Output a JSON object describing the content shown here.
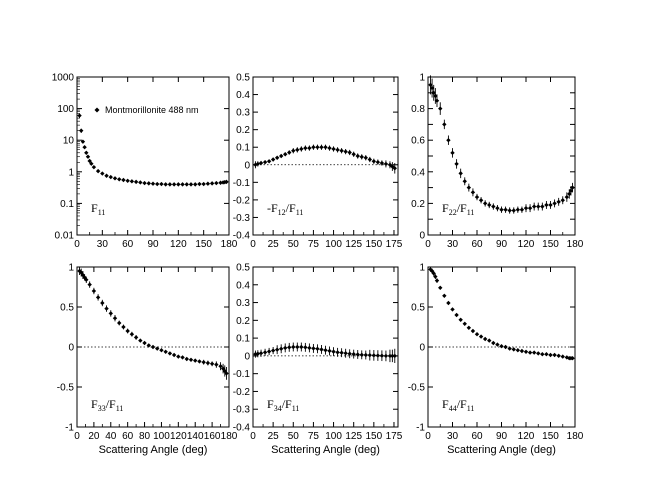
{
  "chart_data": [
    {
      "id": "f11",
      "type": "scatter",
      "panel_label": {
        "main": "F",
        "sub": "11"
      },
      "yscale": "log",
      "ylim": [
        0.01,
        1000
      ],
      "yticks": [
        0.01,
        0.1,
        1,
        10,
        100,
        1000
      ],
      "ytick_labels": [
        "0.01",
        "0.1",
        "1",
        "10",
        "100",
        "1000"
      ],
      "xlim": [
        0,
        180
      ],
      "xticks": [
        0,
        30,
        60,
        90,
        120,
        150,
        180
      ],
      "xtick_labels": [
        "0",
        "30",
        "60",
        "90",
        "120",
        "150",
        "180"
      ],
      "xlabel": "",
      "legend": {
        "label": "Montmorillonite 488 nm",
        "position": "top-left"
      },
      "series": [
        {
          "x": [
            3,
            5,
            7,
            9,
            11,
            13,
            15,
            17,
            20,
            25,
            30,
            35,
            40,
            45,
            50,
            55,
            60,
            65,
            70,
            75,
            80,
            85,
            90,
            95,
            100,
            105,
            110,
            115,
            120,
            125,
            130,
            135,
            140,
            145,
            150,
            155,
            160,
            165,
            170,
            173,
            175,
            177
          ],
          "y": [
            60,
            20,
            9,
            6,
            4,
            3,
            2.2,
            1.8,
            1.4,
            1.05,
            0.88,
            0.75,
            0.68,
            0.62,
            0.58,
            0.55,
            0.52,
            0.5,
            0.48,
            0.46,
            0.44,
            0.43,
            0.42,
            0.41,
            0.41,
            0.4,
            0.4,
            0.4,
            0.4,
            0.4,
            0.4,
            0.4,
            0.4,
            0.41,
            0.41,
            0.42,
            0.43,
            0.44,
            0.45,
            0.46,
            0.47,
            0.48
          ],
          "err": [
            10,
            3,
            1,
            0.5,
            0.3,
            0.2,
            0.15,
            0.1,
            0.08,
            0.05,
            0.04,
            0.03,
            0.03,
            0.02,
            0.02,
            0.02,
            0.02,
            0.02,
            0.02,
            0.02,
            0.02,
            0.02,
            0.02,
            0.02,
            0.02,
            0.02,
            0.02,
            0.02,
            0.02,
            0.02,
            0.02,
            0.02,
            0.02,
            0.02,
            0.02,
            0.02,
            0.02,
            0.02,
            0.02,
            0.02,
            0.02,
            0.02
          ]
        }
      ]
    },
    {
      "id": "f12",
      "type": "scatter",
      "panel_label": {
        "main": "-F",
        "sub": "12",
        "tail": "/F",
        "sub2": "11"
      },
      "yscale": "linear",
      "ylim": [
        -0.4,
        0.5
      ],
      "yticks": [
        -0.4,
        -0.3,
        -0.2,
        -0.1,
        0,
        0.1,
        0.2,
        0.3,
        0.4,
        0.5
      ],
      "ytick_labels": [
        "-0.4",
        "-0.3",
        "-0.2",
        "-0.1",
        "0",
        "0.1",
        "0.2",
        "0.3",
        "0.4",
        "0.5"
      ],
      "xlim": [
        0,
        180
      ],
      "xticks": [
        0,
        25,
        50,
        75,
        100,
        125,
        150,
        175
      ],
      "xtick_labels": [
        "0",
        "25",
        "50",
        "75",
        "100",
        "125",
        "150",
        "175"
      ],
      "xlabel": "",
      "zero_line": true,
      "series": [
        {
          "x": [
            3,
            6,
            10,
            15,
            20,
            25,
            30,
            35,
            40,
            45,
            50,
            55,
            60,
            65,
            70,
            75,
            80,
            85,
            90,
            95,
            100,
            105,
            110,
            115,
            120,
            125,
            130,
            135,
            140,
            145,
            150,
            155,
            160,
            165,
            170,
            173,
            176
          ],
          "y": [
            0,
            0.005,
            0.01,
            0.015,
            0.02,
            0.03,
            0.04,
            0.05,
            0.06,
            0.07,
            0.08,
            0.085,
            0.09,
            0.095,
            0.095,
            0.1,
            0.1,
            0.1,
            0.1,
            0.095,
            0.09,
            0.085,
            0.08,
            0.075,
            0.07,
            0.06,
            0.05,
            0.045,
            0.04,
            0.03,
            0.02,
            0.015,
            0.01,
            0.005,
            0,
            -0.01,
            -0.02
          ],
          "err": [
            0.02,
            0.015,
            0.012,
            0.01,
            0.01,
            0.01,
            0.01,
            0.01,
            0.01,
            0.012,
            0.015,
            0.015,
            0.015,
            0.015,
            0.015,
            0.015,
            0.015,
            0.015,
            0.015,
            0.015,
            0.015,
            0.015,
            0.015,
            0.015,
            0.015,
            0.015,
            0.015,
            0.015,
            0.015,
            0.015,
            0.015,
            0.015,
            0.015,
            0.02,
            0.02,
            0.025,
            0.03
          ]
        }
      ]
    },
    {
      "id": "f22",
      "type": "scatter",
      "panel_label": {
        "main": "F",
        "sub": "22",
        "tail": "/F",
        "sub2": "11"
      },
      "yscale": "linear",
      "ylim": [
        0,
        1
      ],
      "yticks": [
        0,
        0.1,
        0.2,
        0.3,
        0.4,
        0.5,
        0.6,
        0.7,
        0.8,
        0.9,
        1
      ],
      "ytick_labels": [
        "0",
        "",
        "0.2",
        "",
        "0.4",
        "",
        "0.6",
        "",
        "0.8",
        "",
        "1"
      ],
      "xlim": [
        0,
        180
      ],
      "xticks": [
        0,
        30,
        60,
        90,
        120,
        150,
        180
      ],
      "xtick_labels": [
        "0",
        "30",
        "60",
        "90",
        "120",
        "150",
        "180"
      ],
      "xlabel": "",
      "series": [
        {
          "x": [
            3,
            5,
            7,
            9,
            11,
            15,
            20,
            25,
            30,
            35,
            40,
            45,
            50,
            55,
            60,
            65,
            70,
            75,
            80,
            85,
            90,
            95,
            100,
            105,
            110,
            115,
            120,
            125,
            130,
            135,
            140,
            145,
            150,
            155,
            160,
            165,
            170,
            173,
            175,
            177
          ],
          "y": [
            0.95,
            0.93,
            0.9,
            0.88,
            0.85,
            0.8,
            0.7,
            0.6,
            0.52,
            0.45,
            0.39,
            0.34,
            0.3,
            0.27,
            0.24,
            0.22,
            0.2,
            0.19,
            0.18,
            0.17,
            0.16,
            0.16,
            0.155,
            0.155,
            0.16,
            0.16,
            0.17,
            0.17,
            0.18,
            0.18,
            0.18,
            0.19,
            0.19,
            0.2,
            0.21,
            0.22,
            0.24,
            0.26,
            0.28,
            0.3
          ],
          "err": [
            0.06,
            0.06,
            0.05,
            0.05,
            0.04,
            0.04,
            0.03,
            0.03,
            0.03,
            0.03,
            0.03,
            0.025,
            0.025,
            0.025,
            0.02,
            0.02,
            0.02,
            0.02,
            0.02,
            0.02,
            0.02,
            0.02,
            0.02,
            0.02,
            0.02,
            0.02,
            0.025,
            0.025,
            0.025,
            0.025,
            0.025,
            0.025,
            0.025,
            0.025,
            0.025,
            0.025,
            0.03,
            0.03,
            0.03,
            0.03
          ]
        }
      ]
    },
    {
      "id": "f33",
      "type": "scatter",
      "panel_label": {
        "main": "F",
        "sub": "33",
        "tail": "/F",
        "sub2": "11"
      },
      "yscale": "linear",
      "ylim": [
        -1,
        1
      ],
      "yticks": [
        -1,
        -0.5,
        0,
        0.5,
        1
      ],
      "ytick_labels": [
        "-1",
        "-0.5",
        "0",
        "0.5",
        "1"
      ],
      "xlim": [
        0,
        180
      ],
      "xticks": [
        0,
        20,
        40,
        60,
        80,
        100,
        120,
        140,
        160,
        180
      ],
      "xtick_labels": [
        "0",
        "20",
        "40",
        "60",
        "80",
        "100",
        "120",
        "140",
        "160",
        "180"
      ],
      "xlabel": "Scattering Angle (deg)",
      "zero_line": true,
      "series": [
        {
          "x": [
            3,
            5,
            7,
            9,
            11,
            15,
            20,
            25,
            30,
            35,
            40,
            45,
            50,
            55,
            60,
            65,
            70,
            75,
            80,
            85,
            90,
            95,
            100,
            105,
            110,
            115,
            120,
            125,
            130,
            135,
            140,
            145,
            150,
            155,
            160,
            165,
            170,
            173,
            175,
            177
          ],
          "y": [
            0.95,
            0.93,
            0.9,
            0.87,
            0.84,
            0.78,
            0.7,
            0.62,
            0.55,
            0.48,
            0.42,
            0.36,
            0.3,
            0.25,
            0.2,
            0.16,
            0.12,
            0.08,
            0.05,
            0.02,
            0,
            -0.02,
            -0.04,
            -0.06,
            -0.08,
            -0.1,
            -0.12,
            -0.13,
            -0.15,
            -0.16,
            -0.17,
            -0.18,
            -0.19,
            -0.2,
            -0.21,
            -0.22,
            -0.24,
            -0.27,
            -0.3,
            -0.33
          ],
          "err": [
            0.05,
            0.05,
            0.05,
            0.04,
            0.04,
            0.04,
            0.04,
            0.04,
            0.04,
            0.04,
            0.04,
            0.04,
            0.03,
            0.03,
            0.03,
            0.03,
            0.03,
            0.02,
            0.02,
            0.02,
            0.02,
            0.02,
            0.02,
            0.02,
            0.02,
            0.02,
            0.02,
            0.02,
            0.02,
            0.02,
            0.02,
            0.02,
            0.03,
            0.03,
            0.03,
            0.04,
            0.05,
            0.06,
            0.07,
            0.08
          ]
        }
      ]
    },
    {
      "id": "f34",
      "type": "scatter",
      "panel_label": {
        "main": "F",
        "sub": "34",
        "tail": "/F",
        "sub2": "11"
      },
      "yscale": "linear",
      "ylim": [
        -0.4,
        0.5
      ],
      "yticks": [
        -0.4,
        -0.3,
        -0.2,
        -0.1,
        0,
        0.1,
        0.2,
        0.3,
        0.4,
        0.5
      ],
      "ytick_labels": [
        "-0.4",
        "-0.3",
        "-0.2",
        "-0.1",
        "0",
        "0.1",
        "0.2",
        "0.3",
        "0.4",
        "0.5"
      ],
      "xlim": [
        0,
        180
      ],
      "xticks": [
        0,
        25,
        50,
        75,
        100,
        125,
        150,
        175
      ],
      "xtick_labels": [
        "0",
        "25",
        "50",
        "75",
        "100",
        "125",
        "150",
        "175"
      ],
      "xlabel": "Scattering Angle (deg)",
      "zero_line": true,
      "series": [
        {
          "x": [
            3,
            6,
            10,
            15,
            20,
            25,
            30,
            35,
            40,
            45,
            50,
            55,
            60,
            65,
            70,
            75,
            80,
            85,
            90,
            95,
            100,
            105,
            110,
            115,
            120,
            125,
            130,
            135,
            140,
            145,
            150,
            155,
            160,
            165,
            170,
            173,
            176
          ],
          "y": [
            0.01,
            0.012,
            0.015,
            0.02,
            0.025,
            0.03,
            0.035,
            0.04,
            0.045,
            0.048,
            0.05,
            0.05,
            0.05,
            0.048,
            0.045,
            0.042,
            0.04,
            0.036,
            0.032,
            0.028,
            0.024,
            0.02,
            0.018,
            0.015,
            0.012,
            0.01,
            0.008,
            0.006,
            0.005,
            0.004,
            0.003,
            0.002,
            0.001,
            0,
            0,
            0,
            0
          ],
          "err": [
            0.02,
            0.02,
            0.02,
            0.02,
            0.02,
            0.02,
            0.025,
            0.025,
            0.025,
            0.025,
            0.025,
            0.025,
            0.025,
            0.025,
            0.025,
            0.025,
            0.025,
            0.025,
            0.025,
            0.025,
            0.025,
            0.025,
            0.025,
            0.025,
            0.025,
            0.025,
            0.025,
            0.025,
            0.025,
            0.03,
            0.03,
            0.03,
            0.03,
            0.03,
            0.035,
            0.035,
            0.04
          ]
        }
      ]
    },
    {
      "id": "f44",
      "type": "scatter",
      "panel_label": {
        "main": "F",
        "sub": "44",
        "tail": "/F",
        "sub2": "11"
      },
      "yscale": "linear",
      "ylim": [
        -1,
        1
      ],
      "yticks": [
        -1,
        -0.5,
        0,
        0.5,
        1
      ],
      "ytick_labels": [
        "-1",
        "-0.5",
        "0",
        "0.5",
        "1"
      ],
      "xlim": [
        0,
        180
      ],
      "xticks": [
        0,
        30,
        60,
        90,
        120,
        150,
        180
      ],
      "xtick_labels": [
        "0",
        "30",
        "60",
        "90",
        "120",
        "150",
        "180"
      ],
      "xlabel": "Scattering Angle (deg)",
      "zero_line": true,
      "series": [
        {
          "x": [
            3,
            5,
            7,
            9,
            11,
            15,
            20,
            25,
            30,
            35,
            40,
            45,
            50,
            55,
            60,
            65,
            70,
            75,
            80,
            85,
            90,
            95,
            100,
            105,
            110,
            115,
            120,
            125,
            130,
            135,
            140,
            145,
            150,
            155,
            160,
            165,
            170,
            173,
            175,
            177
          ],
          "y": [
            0.97,
            0.95,
            0.92,
            0.88,
            0.83,
            0.74,
            0.64,
            0.55,
            0.47,
            0.4,
            0.34,
            0.29,
            0.24,
            0.2,
            0.16,
            0.13,
            0.1,
            0.08,
            0.05,
            0.03,
            0.01,
            0,
            -0.02,
            -0.03,
            -0.04,
            -0.05,
            -0.06,
            -0.07,
            -0.07,
            -0.08,
            -0.09,
            -0.09,
            -0.1,
            -0.1,
            -0.11,
            -0.12,
            -0.13,
            -0.14,
            -0.14,
            -0.14
          ],
          "err": [
            0.03,
            0.03,
            0.03,
            0.03,
            0.03,
            0.02,
            0.02,
            0.02,
            0.02,
            0.02,
            0.02,
            0.02,
            0.02,
            0.02,
            0.02,
            0.02,
            0.02,
            0.02,
            0.02,
            0.02,
            0.02,
            0.02,
            0.02,
            0.02,
            0.02,
            0.02,
            0.02,
            0.02,
            0.02,
            0.02,
            0.02,
            0.02,
            0.02,
            0.02,
            0.02,
            0.02,
            0.02,
            0.02,
            0.02,
            0.02
          ]
        }
      ]
    }
  ]
}
